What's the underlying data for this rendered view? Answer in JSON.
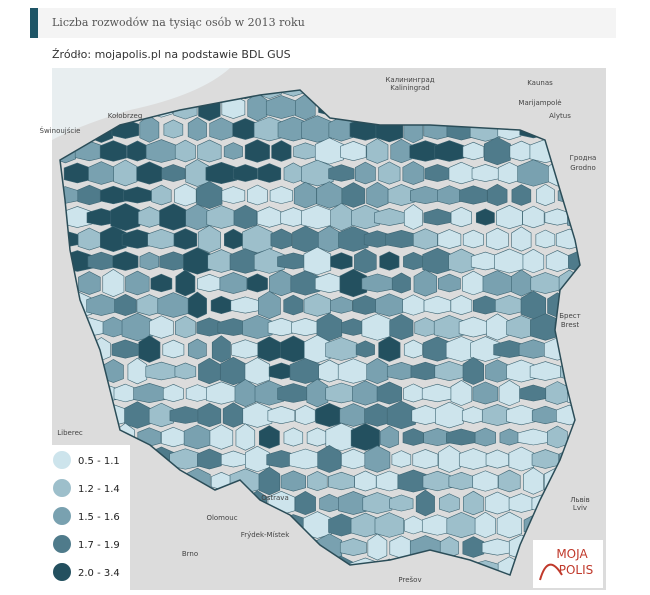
{
  "header": {
    "title": "Liczba rozwodów na tysiąc osób w 2013 roku",
    "source": "Źródło: mojapolis.pl na podstawie BDL GUS"
  },
  "map": {
    "place_labels": [
      "Kaunas",
      "Kaliningrad",
      "Калининград",
      "Marijampolė",
      "Alytus",
      "Гродна",
      "Grodno",
      "Brest",
      "Брест",
      "Świnoujście",
      "Kołobrzeg",
      "Liberec",
      "Olomouc",
      "Ostrava",
      "Frýdek-Místek",
      "Brno",
      "Prešov",
      "Lviv",
      "Львів"
    ]
  },
  "legend": [
    {
      "label": "0.5 - 1.1",
      "color": "#cde4ec"
    },
    {
      "label": "1.2 - 1.4",
      "color": "#9dbfcb"
    },
    {
      "label": "1.5 - 1.6",
      "color": "#79a1b0"
    },
    {
      "label": "1.7 - 1.9",
      "color": "#4f7b8b"
    },
    {
      "label": "2.0 - 3.4",
      "color": "#23505f"
    }
  ],
  "logo": {
    "line1": "MOJA",
    "line2": "POLIS"
  }
}
